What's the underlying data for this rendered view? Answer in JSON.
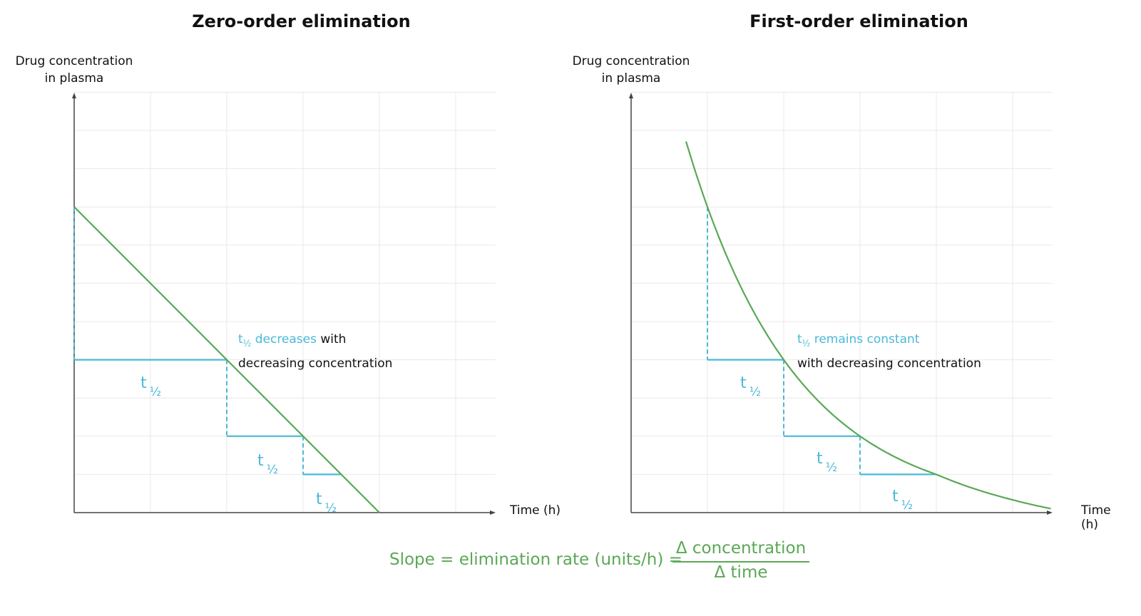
{
  "chart_data": [
    {
      "type": "line",
      "title": "Zero-order elimination",
      "ylabel": "Drug concentration in plasma",
      "xlabel": "Time (h)",
      "xlim": [
        0,
        5.5
      ],
      "ylim": [
        0,
        11
      ],
      "grid": true,
      "series": [
        {
          "x": [
            0,
            4
          ],
          "y": [
            8,
            0
          ]
        }
      ],
      "half_life_segments": [
        {
          "x_start": 0,
          "x_end": 2,
          "y_from": 8,
          "y_to": 4
        },
        {
          "x_start": 2,
          "x_end": 3,
          "y_from": 4,
          "y_to": 2
        },
        {
          "x_start": 3,
          "x_end": 3.5,
          "y_from": 2,
          "y_to": 1
        }
      ],
      "half_life_labels": [
        "t",
        "t",
        "t"
      ],
      "half_life_sub": "½",
      "annotation": {
        "highlight_t": "t",
        "highlight_sub": "½",
        "highlight_text": "decreases",
        "text_1": "with",
        "text_2": "decreasing concentration"
      }
    },
    {
      "type": "line",
      "title": "First-order elimination",
      "ylabel": "Drug concentration in plasma",
      "xlabel": "Time (h)",
      "xlim": [
        0,
        5.5
      ],
      "ylim": [
        0,
        11
      ],
      "grid": true,
      "series": [
        {
          "x": [
            0.72,
            1,
            2,
            3,
            4,
            5.5
          ],
          "y": [
            11,
            8,
            4,
            2,
            1,
            0.4
          ]
        }
      ],
      "half_life_segments": [
        {
          "x_start": 1,
          "x_end": 2,
          "y_from": 8,
          "y_to": 4
        },
        {
          "x_start": 2,
          "x_end": 3,
          "y_from": 4,
          "y_to": 2
        },
        {
          "x_start": 3,
          "x_end": 4,
          "y_from": 2,
          "y_to": 1
        }
      ],
      "half_life_labels": [
        "t",
        "t",
        "t"
      ],
      "half_life_sub": "½",
      "annotation": {
        "highlight_t": "t",
        "highlight_sub": "½",
        "highlight_text": "remains constant",
        "text_1": "",
        "text_2": "with decreasing concentration"
      }
    }
  ],
  "formula": {
    "lhs": "Slope = elimination rate (units/h) =",
    "numerator": "Δ concentration",
    "denominator": "Δ time"
  },
  "colors": {
    "line": "#5aa855",
    "half_life": "#4ab8d8",
    "grid": "#e8e8e8",
    "axis": "#444444"
  }
}
